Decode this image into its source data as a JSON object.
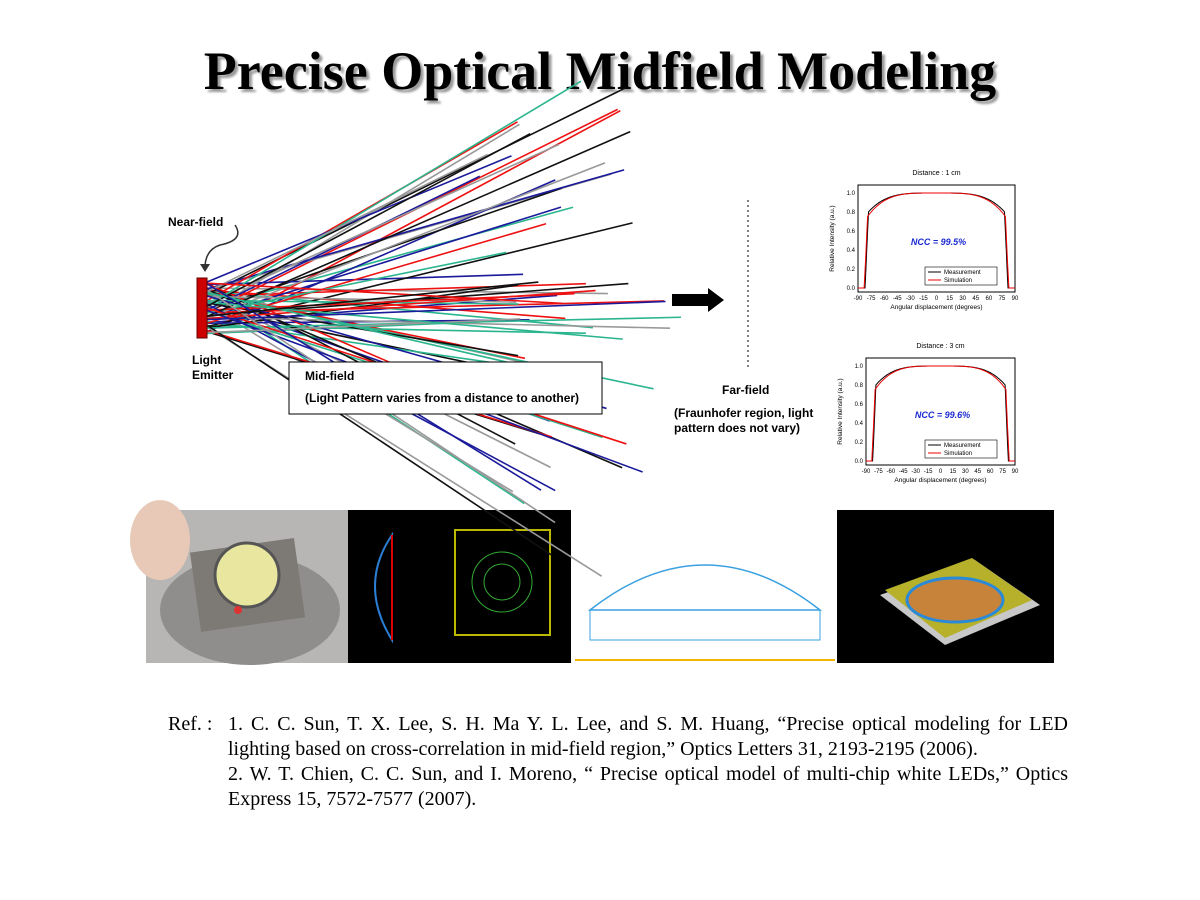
{
  "title": "Precise Optical Midfield Modeling",
  "diagram": {
    "near_field": "Near-field",
    "emitter_lines": [
      "Light",
      "Emitter"
    ],
    "mid_field": "Mid-field",
    "mid_field_note": "(Light Pattern varies from a distance to another)",
    "far_field": "Far-field",
    "far_field_note_lines": [
      "(Fraunhofer region, light",
      "pattern does not vary)"
    ]
  },
  "plots": [
    {
      "title": "Distance : 1 cm",
      "ncc": "NCC = 99.5%",
      "y_label": "Relative Intensity (a.u.)",
      "x_label": "Angular displacement (degrees)",
      "yticks": [
        "0.0",
        "0.2",
        "0.4",
        "0.6",
        "0.8",
        "1.0"
      ],
      "xticks": [
        "-90",
        "-75",
        "-60",
        "-45",
        "-30",
        "-15",
        "0",
        "15",
        "30",
        "45",
        "60",
        "75",
        "90"
      ],
      "legend": [
        "Measurement",
        "Simulation"
      ]
    },
    {
      "title": "Distance : 3 cm",
      "ncc": "NCC = 99.6%",
      "y_label": "Relative Intensity (a.u.)",
      "x_label": "Angular displacement (degrees)",
      "yticks": [
        "0.0",
        "0.2",
        "0.4",
        "0.6",
        "0.8",
        "1.0"
      ],
      "xticks": [
        "-90",
        "-75",
        "-60",
        "-45",
        "-30",
        "-15",
        "0",
        "15",
        "30",
        "45",
        "60",
        "75",
        "90"
      ],
      "legend": [
        "Measurement",
        "Simulation"
      ]
    }
  ],
  "references": {
    "prefix": "Ref. :",
    "items": [
      "1. C. C. Sun, T. X. Lee, S. H. Ma Y. L. Lee, and S. M. Huang, “Precise optical modeling for LED lighting based on cross-correlation in mid-field region,” Optics Letters 31, 2193-2195 (2006).",
      "2. W. T. Chien, C. C. Sun, and I. Moreno, “ Precise optical model of multi-chip white LEDs,” Optics Express 15, 7572-7577 (2007)."
    ]
  }
}
